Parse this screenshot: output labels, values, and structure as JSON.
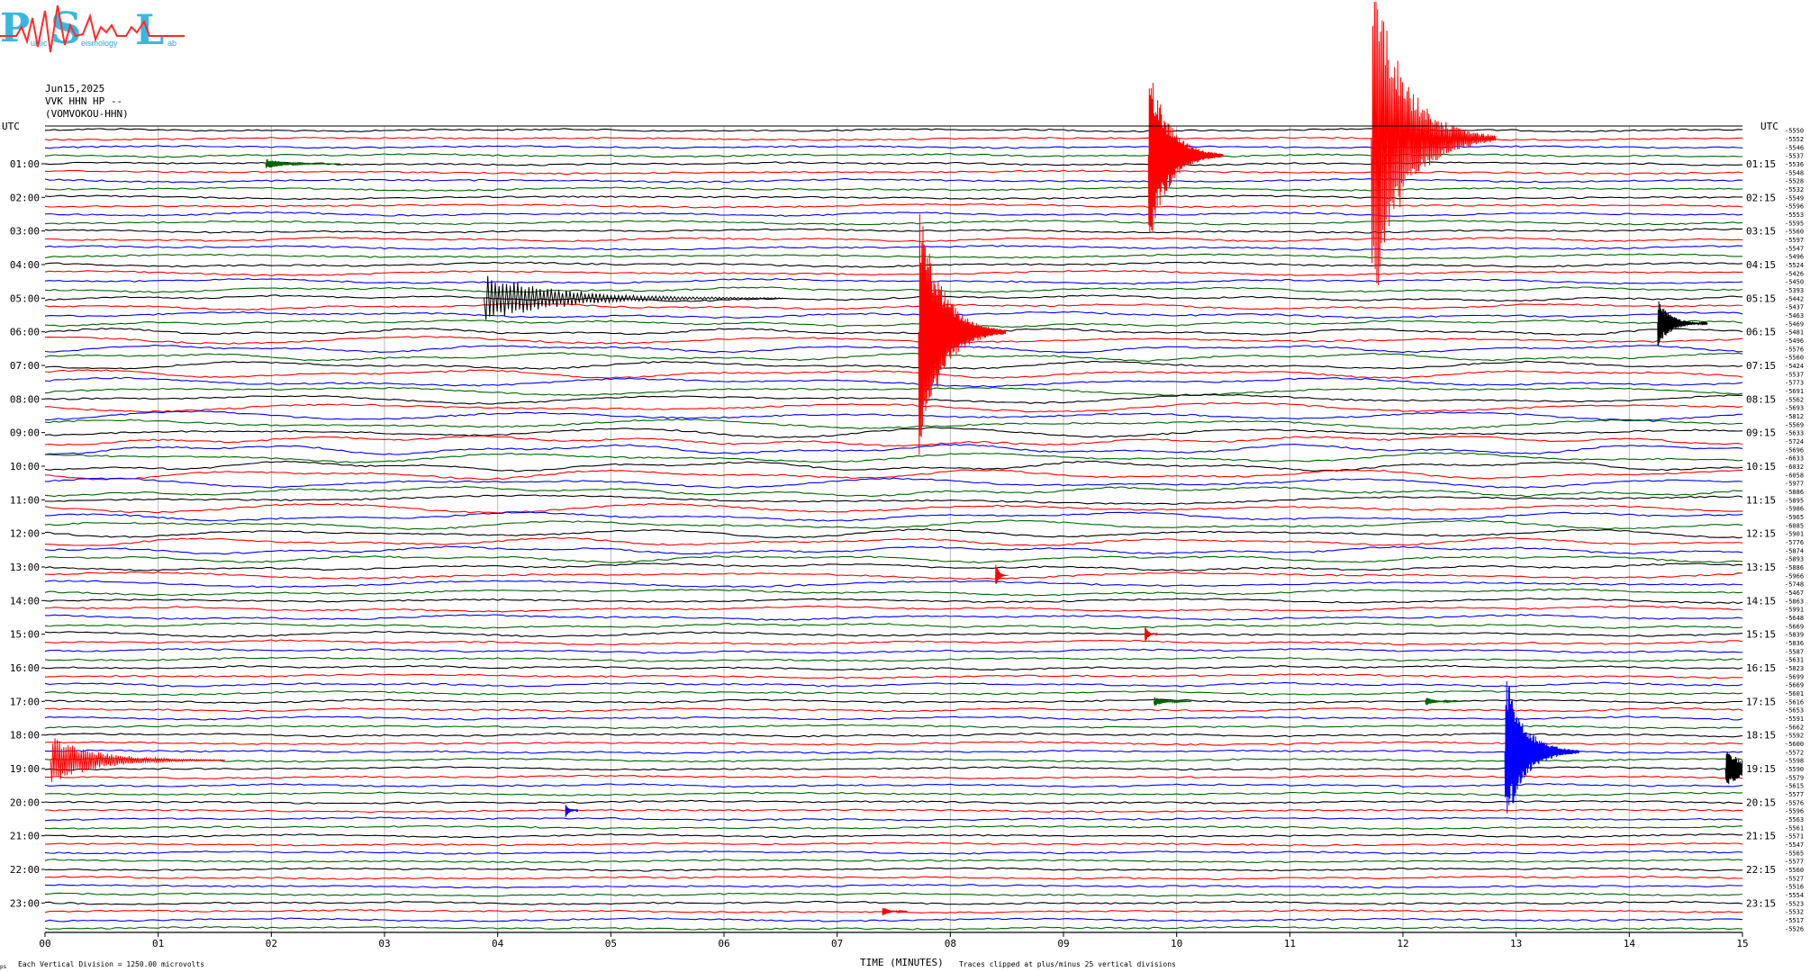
{
  "logo": {
    "letters": [
      "P",
      "S",
      "L"
    ],
    "small_words": [
      "ublic",
      "eismology",
      "ab"
    ]
  },
  "header": {
    "date": "Jun15,2025",
    "channel": "VVK HHN HP --",
    "station": "(VOMVOKOU-HHN)"
  },
  "footer": {
    "scale": "Each Vertical Division = 1250.00 microvolts",
    "xlabel": "TIME (MINUTES)",
    "clip_note": "Traces clipped at plus/minus 25 vertical divisions",
    "corner_mark": "ps"
  },
  "chart_data": {
    "type": "line",
    "subtype": "helicorder",
    "xlabel": "TIME (MINUTES)",
    "xlim": [
      0,
      15
    ],
    "x_ticks": [
      "00",
      "01",
      "02",
      "03",
      "04",
      "05",
      "06",
      "07",
      "08",
      "09",
      "10",
      "11",
      "12",
      "13",
      "14",
      "15"
    ],
    "left_axis_title": "UTC",
    "right_axis_title": "UTC",
    "left_labels": [
      "01:00",
      "02:00",
      "03:00",
      "04:00",
      "05:00",
      "06:00",
      "07:00",
      "08:00",
      "09:00",
      "10:00",
      "11:00",
      "12:00",
      "13:00",
      "14:00",
      "15:00",
      "16:00",
      "17:00",
      "18:00",
      "19:00",
      "20:00",
      "21:00",
      "22:00",
      "23:00"
    ],
    "right_labels": [
      "01:15",
      "02:15",
      "03:15",
      "04:15",
      "05:15",
      "06:15",
      "07:15",
      "08:15",
      "09:15",
      "10:15",
      "11:15",
      "12:15",
      "13:15",
      "14:15",
      "15:15",
      "16:15",
      "17:15",
      "18:15",
      "19:15",
      "20:15",
      "21:15",
      "22:15",
      "23:15"
    ],
    "trace_colors": [
      "#000000",
      "#ff0000",
      "#0000ff",
      "#006400"
    ],
    "trace_count": 96,
    "trace_offsets": [
      -5550,
      -5552,
      -5546,
      -5537,
      -5536,
      -5548,
      -5528,
      -5532,
      -5549,
      -5596,
      -5553,
      -5595,
      -5560,
      -5597,
      -5547,
      -5496,
      -5524,
      -5426,
      -5450,
      -5393,
      -5442,
      -5437,
      -5463,
      -5469,
      -5481,
      -5496,
      -5576,
      -5560,
      -5424,
      -5537,
      -5773,
      -5691,
      -5562,
      -5693,
      -5812,
      -5569,
      -5633,
      -5724,
      -5696,
      -6633,
      -6032,
      -6058,
      -5977,
      -5886,
      -5895,
      -5986,
      -5965,
      -6085,
      -5901,
      -5776,
      -5874,
      -5893,
      -5886,
      -5966,
      -5748,
      -5467,
      -5863,
      -5991,
      -5648,
      -5669,
      -5839,
      -5836,
      -5587,
      -5631,
      -5823,
      -5699,
      -5669,
      -5601,
      -5616,
      -5653,
      -5591,
      -5662,
      -5592,
      -5600,
      -5572,
      -5598,
      -5590,
      -5579,
      -5615,
      -5577,
      -5576,
      -5596,
      -5563,
      -5561,
      -5571,
      -5547,
      -5565,
      -5577,
      -5560,
      -5527,
      -5516,
      -5554,
      -5523,
      -5532,
      -5517,
      -5526
    ],
    "events": [
      {
        "trace": 3,
        "minute": 9.75,
        "amp": 12,
        "decay": 0.3,
        "color": "#ff0000"
      },
      {
        "trace": 1,
        "minute": 11.72,
        "amp": 22,
        "decay": 0.5,
        "color": "#ff0000"
      },
      {
        "trace": 24,
        "minute": 7.72,
        "amp": 16,
        "decay": 0.35,
        "color": "#ff0000"
      },
      {
        "trace": 20,
        "minute": 3.88,
        "amp": 3,
        "decay": 1.2,
        "color": "#000000"
      },
      {
        "trace": 23,
        "minute": 14.25,
        "amp": 3,
        "decay": 0.2,
        "color": "#000000"
      },
      {
        "trace": 75,
        "minute": 0.05,
        "amp": 3,
        "decay": 0.7,
        "color": "#ff0000"
      },
      {
        "trace": 74,
        "minute": 12.9,
        "amp": 10,
        "decay": 0.3,
        "color": "#0000ff"
      },
      {
        "trace": 76,
        "minute": 14.85,
        "amp": 2.5,
        "decay": 0.3,
        "color": "#000000"
      },
      {
        "trace": 53,
        "minute": 8.4,
        "amp": 1.5,
        "decay": 0.05,
        "color": "#ff0000"
      },
      {
        "trace": 60,
        "minute": 9.72,
        "amp": 1,
        "decay": 0.05,
        "color": "#ff0000"
      },
      {
        "trace": 4,
        "minute": 1.95,
        "amp": 0.6,
        "decay": 0.3,
        "color": "#006400"
      },
      {
        "trace": 68,
        "minute": 9.8,
        "amp": 0.6,
        "decay": 0.15,
        "color": "#006400"
      },
      {
        "trace": 68,
        "minute": 12.2,
        "amp": 0.5,
        "decay": 0.15,
        "color": "#006400"
      },
      {
        "trace": 93,
        "minute": 7.4,
        "amp": 0.6,
        "decay": 0.1,
        "color": "#ff0000"
      },
      {
        "trace": 81,
        "minute": 4.6,
        "amp": 0.8,
        "decay": 0.05,
        "color": "#0000ff"
      }
    ]
  }
}
